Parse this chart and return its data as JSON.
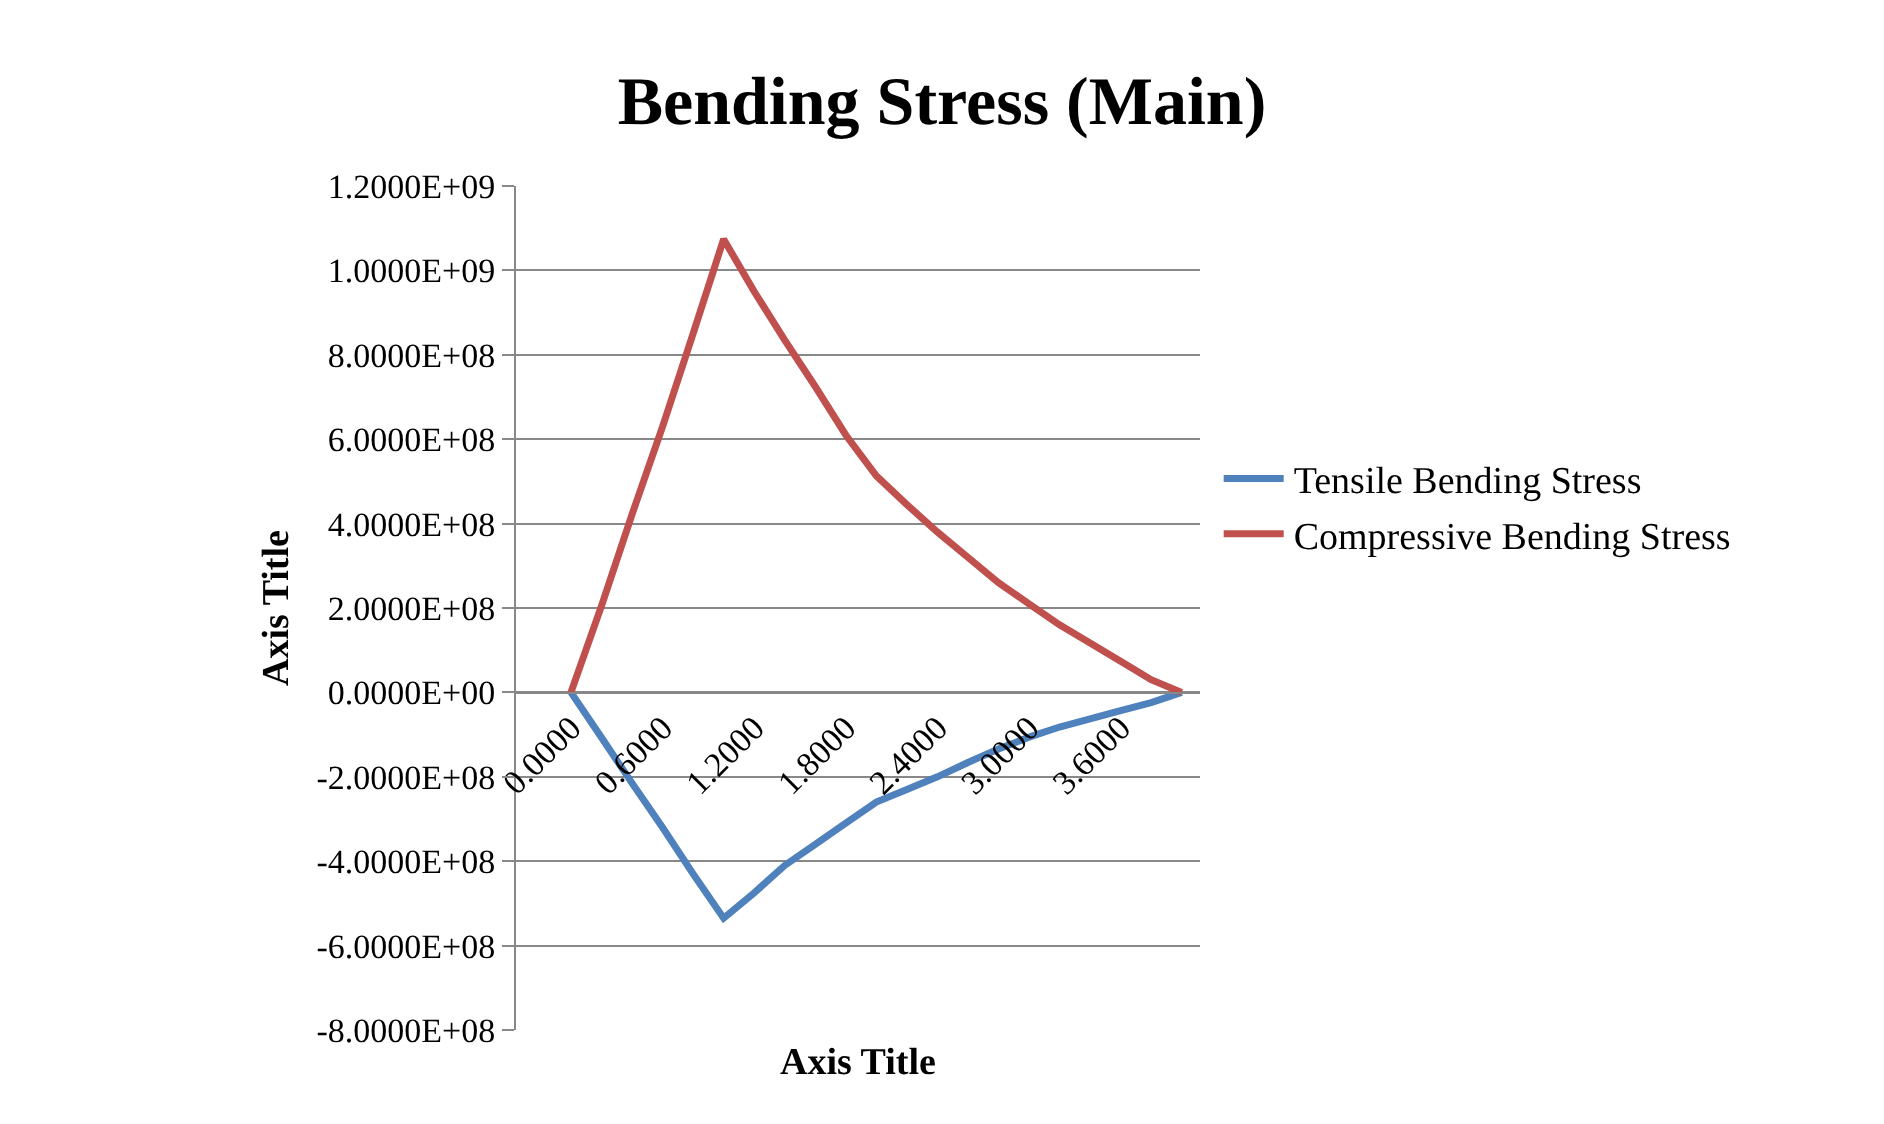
{
  "chart_data": {
    "type": "line",
    "title": "Bending Stress (Main)",
    "xlabel": "Axis Title",
    "ylabel": "Axis Title",
    "categories": [
      "0.0000",
      null,
      null,
      "0.6000",
      null,
      null,
      "1.2000",
      null,
      null,
      "1.8000",
      null,
      null,
      "2.4000",
      null,
      null,
      "3.0000",
      null,
      null,
      "3.6000",
      null,
      null
    ],
    "series": [
      {
        "name": "Tensile Bending Stress",
        "color": "#4f81bd",
        "values": [
          0,
          -107000000.0,
          -215000000.0,
          -320000000.0,
          -430000000.0,
          -535000000.0,
          -475000000.0,
          -410000000.0,
          -360000000.0,
          -310000000.0,
          -260000000.0,
          -230000000.0,
          -200000000.0,
          -166000000.0,
          -134000000.0,
          -106000000.0,
          -82000000.0,
          -63000000.0,
          -43000000.0,
          -24000000.0,
          0
        ]
      },
      {
        "name": "Compressive Bending Stress",
        "color": "#c0504d",
        "values": [
          0,
          205000000.0,
          422000000.0,
          630000000.0,
          850000000.0,
          1074000000.0,
          950000000.0,
          835000000.0,
          725000000.0,
          610000000.0,
          513000000.0,
          445000000.0,
          380000000.0,
          320000000.0,
          260000000.0,
          210000000.0,
          160000000.0,
          117000000.0,
          74000000.0,
          30000000.0,
          0
        ]
      }
    ],
    "ylim": [
      -800000000.0,
      1200000000.0
    ],
    "yticks": [
      {
        "value": -800000000.0,
        "label": "-8.0000E+08"
      },
      {
        "value": -600000000.0,
        "label": "-6.0000E+08"
      },
      {
        "value": -400000000.0,
        "label": "-4.0000E+08"
      },
      {
        "value": -200000000.0,
        "label": "-2.0000E+08"
      },
      {
        "value": 0,
        "label": "0.0000E+00"
      },
      {
        "value": 200000000.0,
        "label": "2.0000E+08"
      },
      {
        "value": 400000000.0,
        "label": "4.0000E+08"
      },
      {
        "value": 600000000.0,
        "label": "6.0000E+08"
      },
      {
        "value": 800000000.0,
        "label": "8.0000E+08"
      },
      {
        "value": 1000000000.0,
        "label": "1.0000E+09"
      },
      {
        "value": 1200000000.0,
        "label": "1.2000E+09"
      }
    ],
    "grid": "y",
    "legend": "right",
    "marker": "none",
    "line_style": "solid"
  }
}
